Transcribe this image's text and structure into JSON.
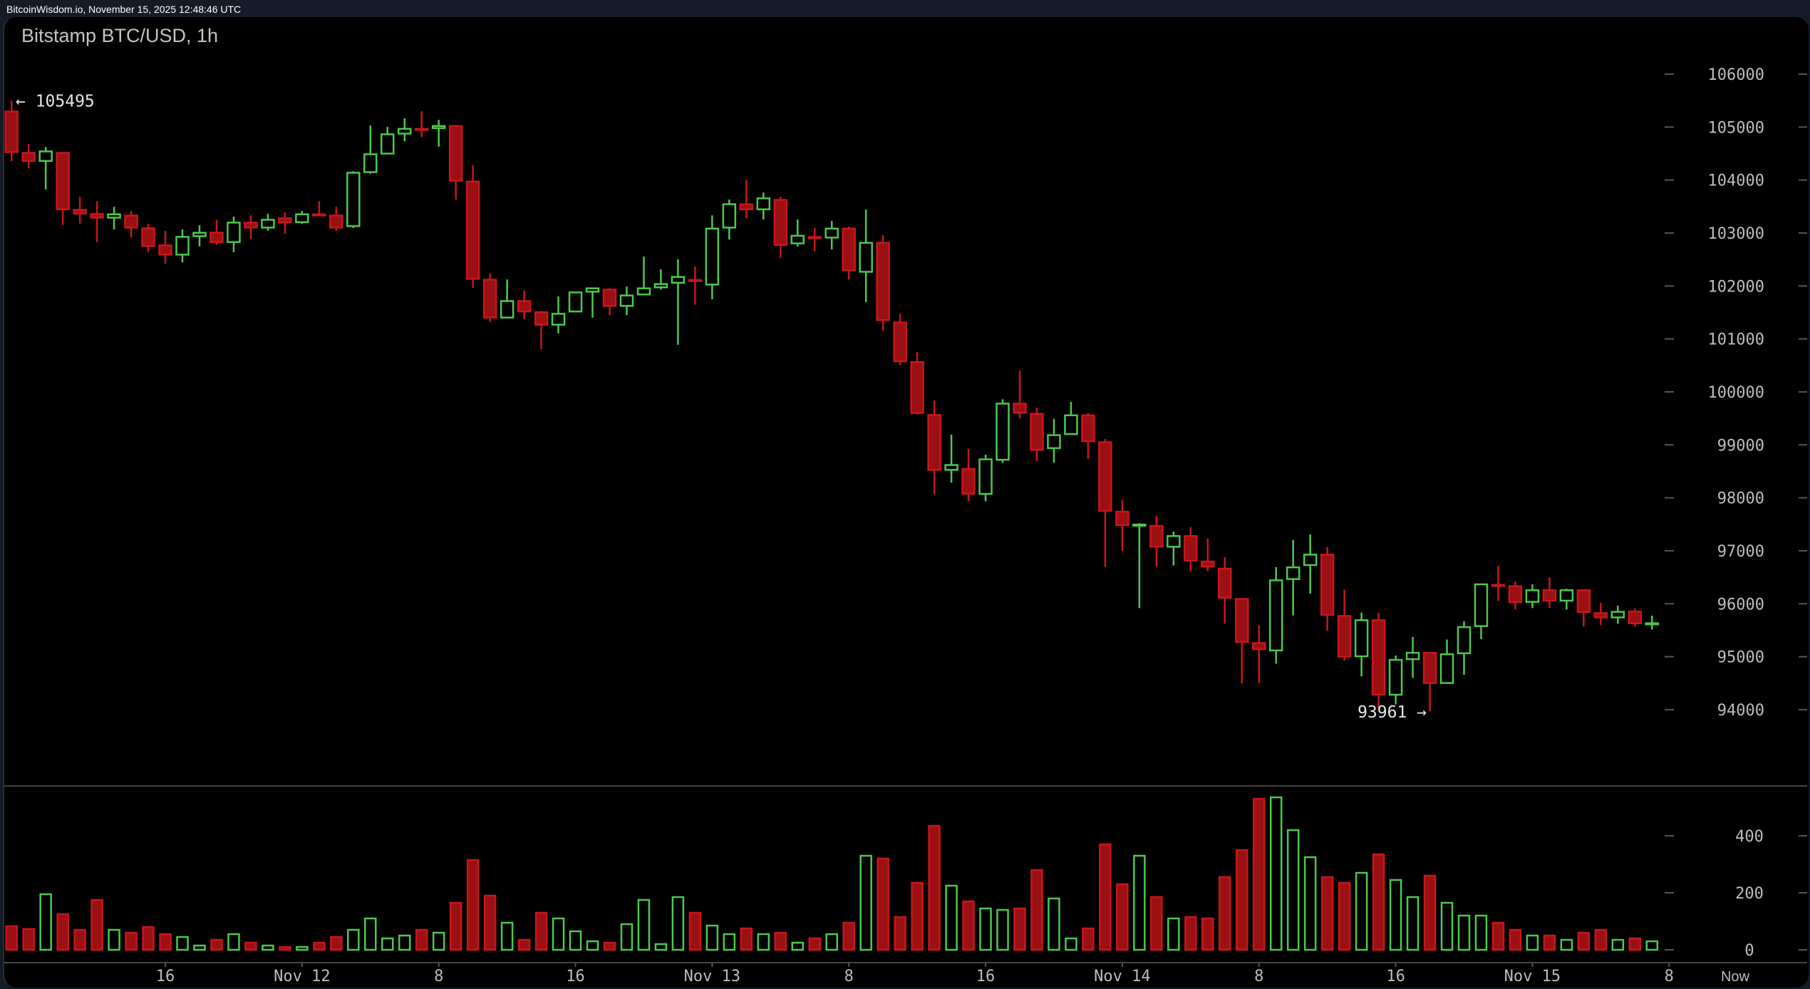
{
  "header": {
    "timestamp_text": "BitcoinWisdom.io, November 15, 2025 12:48:46 UTC"
  },
  "chart_data": {
    "type": "candlestick",
    "title": "Bitstamp BTC/USD, 1h",
    "colors": {
      "up": "#4cc94c",
      "down": "#c8161c",
      "down_fill": "#9b1013",
      "axis_text": "#bdbdbd",
      "separator": "#444444"
    },
    "price_axis": {
      "range": [
        93800,
        106300
      ],
      "ticks": [
        "106000",
        "105000",
        "104000",
        "103000",
        "102000",
        "101000",
        "100000",
        "99000",
        "98000",
        "97000",
        "96000",
        "95000",
        "94000"
      ]
    },
    "volume_axis": {
      "range": [
        0,
        560
      ],
      "ticks": [
        "400",
        "200",
        "0"
      ]
    },
    "x_tick_labels": [
      "16",
      "Nov 12",
      "8",
      "16",
      "Nov 13",
      "8",
      "16",
      "Nov 14",
      "8",
      "16",
      "Nov 15",
      "8"
    ],
    "now_label": "Now",
    "annotations": {
      "high_label": "← 105495",
      "high_value": 105495,
      "low_label": "93961 →",
      "low_value": 93961
    },
    "candles_ohlc": [
      [
        105293,
        105495,
        104357,
        104527
      ],
      [
        104513,
        104679,
        104222,
        104361
      ],
      [
        104361,
        104625,
        103823,
        104540
      ],
      [
        104513,
        104513,
        103151,
        103447
      ],
      [
        103438,
        103685,
        103178,
        103367
      ],
      [
        103358,
        103604,
        102824,
        103290
      ],
      [
        103290,
        103496,
        103066,
        103353
      ],
      [
        103330,
        103416,
        102914,
        103102
      ],
      [
        103089,
        103174,
        102636,
        102753
      ],
      [
        102766,
        103040,
        102421,
        102591
      ],
      [
        102591,
        103067,
        102448,
        102927
      ],
      [
        102940,
        103147,
        102748,
        103004
      ],
      [
        103008,
        103250,
        102775,
        102829
      ],
      [
        102829,
        103308,
        102636,
        103196
      ],
      [
        103196,
        103335,
        102883,
        103102
      ],
      [
        103102,
        103362,
        103040,
        103250
      ],
      [
        103277,
        103389,
        102986,
        103205
      ],
      [
        103205,
        103416,
        103174,
        103353
      ],
      [
        103350,
        103604,
        103340,
        103345
      ],
      [
        103330,
        103496,
        103040,
        103102
      ],
      [
        103129,
        104168,
        103093,
        104137
      ],
      [
        104150,
        105029,
        104119,
        104486
      ],
      [
        104499,
        105002,
        104490,
        104863
      ],
      [
        104876,
        105163,
        104733,
        104966
      ],
      [
        104966,
        105298,
        104813,
        104960
      ],
      [
        104980,
        105136,
        104630,
        105020
      ],
      [
        105020,
        105020,
        103630,
        103989
      ],
      [
        103971,
        104276,
        101964,
        102134
      ],
      [
        102117,
        102233,
        101319,
        101404
      ],
      [
        101403,
        102123,
        101384,
        101715
      ],
      [
        101715,
        101911,
        101374,
        101518
      ],
      [
        101503,
        101527,
        100807,
        101268
      ],
      [
        101268,
        101801,
        101105,
        101475
      ],
      [
        101518,
        101878,
        101518,
        101878
      ],
      [
        101892,
        101955,
        101403,
        101955
      ],
      [
        101931,
        101959,
        101451,
        101623
      ],
      [
        101623,
        101988,
        101451,
        101820
      ],
      [
        101839,
        102555,
        101839,
        101955
      ],
      [
        101974,
        102315,
        101935,
        102036
      ],
      [
        102060,
        102502,
        100889,
        102170
      ],
      [
        102113,
        102367,
        101647,
        102108
      ],
      [
        102027,
        103332,
        101748,
        103083
      ],
      [
        103102,
        103630,
        102876,
        103543
      ],
      [
        103543,
        104004,
        103279,
        103447
      ],
      [
        103447,
        103764,
        103255,
        103654
      ],
      [
        103625,
        103683,
        102526,
        102775
      ],
      [
        102804,
        103255,
        102747,
        102948
      ],
      [
        102924,
        103092,
        102660,
        102919
      ],
      [
        102914,
        103227,
        102689,
        103083
      ],
      [
        103083,
        103121,
        102123,
        102295
      ],
      [
        102267,
        103443,
        101695,
        102814
      ],
      [
        102814,
        102958,
        101158,
        101355
      ],
      [
        101311,
        101479,
        100510,
        100577
      ],
      [
        100563,
        100755,
        99569,
        99603
      ],
      [
        99564,
        99838,
        98067,
        98527
      ],
      [
        98527,
        99194,
        98287,
        98619
      ],
      [
        98546,
        98926,
        97937,
        98076
      ],
      [
        98074,
        98814,
        97935,
        98727
      ],
      [
        98718,
        99860,
        98660,
        99778
      ],
      [
        99778,
        100402,
        99500,
        99606
      ],
      [
        99586,
        99702,
        98689,
        98905
      ],
      [
        98938,
        99490,
        98660,
        99183
      ],
      [
        99202,
        99812,
        99202,
        99558
      ],
      [
        99558,
        99596,
        98737,
        99068
      ],
      [
        99049,
        99111,
        96697,
        97753
      ],
      [
        97738,
        97954,
        96994,
        97484
      ],
      [
        97490,
        97522,
        95919,
        97494
      ],
      [
        97470,
        97662,
        96697,
        97076
      ],
      [
        97076,
        97364,
        96721,
        97278
      ],
      [
        97278,
        97446,
        96615,
        96812
      ],
      [
        96798,
        97230,
        96615,
        96702
      ],
      [
        96663,
        96879,
        95622,
        96111
      ],
      [
        96092,
        96092,
        94494,
        95276
      ],
      [
        95257,
        95593,
        94494,
        95142
      ],
      [
        95118,
        96692,
        94868,
        96442
      ],
      [
        96466,
        97206,
        95780,
        96687
      ],
      [
        96730,
        97311,
        96188,
        96927
      ],
      [
        96927,
        97071,
        95487,
        95790
      ],
      [
        95770,
        96265,
        94926,
        95002
      ],
      [
        95007,
        95833,
        94628,
        95689
      ],
      [
        95689,
        95833,
        94028,
        94282
      ],
      [
        94282,
        95022,
        94100,
        94940
      ],
      [
        94954,
        95372,
        94599,
        95074
      ],
      [
        95074,
        95074,
        93961,
        94503
      ],
      [
        94503,
        95324,
        94503,
        95046
      ],
      [
        95065,
        95670,
        94657,
        95559
      ],
      [
        95578,
        96366,
        95334,
        96366
      ],
      [
        96356,
        96716,
        96054,
        96350
      ],
      [
        96332,
        96418,
        95890,
        96030
      ],
      [
        96035,
        96366,
        95919,
        96255
      ],
      [
        96255,
        96500,
        95919,
        96058
      ],
      [
        96058,
        96284,
        95890,
        96255
      ],
      [
        96255,
        96255,
        95569,
        95842
      ],
      [
        95823,
        96015,
        95598,
        95742
      ],
      [
        95742,
        95962,
        95622,
        95847
      ],
      [
        95852,
        95910,
        95569,
        95631
      ],
      [
        95626,
        95775,
        95511,
        95631
      ]
    ],
    "volumes": [
      83,
      73,
      195,
      125,
      70,
      175,
      70,
      60,
      80,
      55,
      45,
      15,
      35,
      55,
      25,
      15,
      10,
      10,
      25,
      45,
      70,
      110,
      40,
      50,
      70,
      60,
      165,
      315,
      190,
      95,
      35,
      130,
      110,
      65,
      30,
      25,
      90,
      175,
      20,
      185,
      130,
      85,
      55,
      75,
      55,
      60,
      25,
      40,
      55,
      95,
      330,
      320,
      115,
      235,
      435,
      225,
      170,
      145,
      140,
      145,
      280,
      180,
      40,
      75,
      370,
      230,
      330,
      185,
      110,
      115,
      110,
      255,
      350,
      530,
      535,
      420,
      325,
      255,
      235,
      270,
      335,
      245,
      185,
      260,
      165,
      120,
      120,
      95,
      70,
      50,
      50,
      35,
      60,
      70,
      35,
      40,
      30
    ]
  }
}
